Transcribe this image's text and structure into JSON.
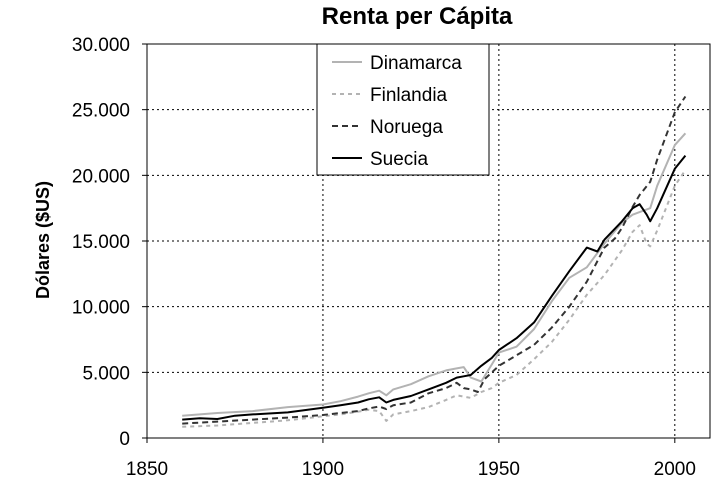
{
  "chart_data": {
    "type": "line",
    "title": "Renta per Cápita",
    "xlabel": "",
    "ylabel": "Dólares ($US)",
    "xlim": [
      1850,
      2010
    ],
    "ylim": [
      0,
      30000
    ],
    "x_ticks": [
      1850,
      1900,
      1950,
      2000
    ],
    "x_tick_labels": [
      "1850",
      "1900",
      "1950",
      "2000"
    ],
    "y_ticks": [
      0,
      5000,
      10000,
      15000,
      20000,
      25000,
      30000
    ],
    "y_tick_labels": [
      "0",
      "5.000",
      "10.000",
      "15.000",
      "20.000",
      "25.000",
      "30.000"
    ],
    "grid": {
      "horizontal": true,
      "vertical": true,
      "style": "dotted"
    },
    "legend_position": "top-center",
    "series": [
      {
        "name": "Dinamarca",
        "color": "#b3b3b3",
        "dash": "solid",
        "x": [
          1860,
          1870,
          1880,
          1890,
          1900,
          1905,
          1910,
          1913,
          1916,
          1918,
          1920,
          1925,
          1930,
          1935,
          1938,
          1940,
          1942,
          1945,
          1948,
          1950,
          1955,
          1960,
          1965,
          1970,
          1975,
          1980,
          1985,
          1988,
          1990,
          1993,
          1995,
          2000,
          2003
        ],
        "y": [
          1700,
          1900,
          2050,
          2350,
          2550,
          2800,
          3150,
          3400,
          3600,
          3250,
          3700,
          4100,
          4700,
          5150,
          5300,
          5400,
          4600,
          4300,
          5600,
          6500,
          6950,
          8300,
          10400,
          12200,
          13000,
          14800,
          16400,
          17000,
          17200,
          17500,
          19200,
          22300,
          23200
        ]
      },
      {
        "name": "Finlandia",
        "color": "#b3b3b3",
        "dash": "4,4",
        "x": [
          1860,
          1870,
          1880,
          1890,
          1900,
          1905,
          1910,
          1913,
          1916,
          1918,
          1920,
          1925,
          1930,
          1935,
          1938,
          1940,
          1942,
          1945,
          1948,
          1950,
          1955,
          1960,
          1965,
          1970,
          1975,
          1980,
          1985,
          1988,
          1990,
          1992,
          1993,
          1995,
          2000,
          2003
        ],
        "y": [
          850,
          950,
          1150,
          1350,
          1650,
          1800,
          2000,
          2150,
          2050,
          1300,
          1800,
          2050,
          2350,
          2900,
          3250,
          3150,
          3050,
          3500,
          3800,
          4200,
          4800,
          6000,
          7300,
          9000,
          10900,
          12400,
          14300,
          15700,
          16200,
          14800,
          14600,
          15800,
          19200,
          20400
        ]
      },
      {
        "name": "Noruega",
        "color": "#333333",
        "dash": "6,4",
        "x": [
          1860,
          1870,
          1880,
          1890,
          1900,
          1905,
          1910,
          1913,
          1916,
          1918,
          1920,
          1925,
          1930,
          1935,
          1938,
          1940,
          1942,
          1944,
          1946,
          1950,
          1955,
          1960,
          1965,
          1970,
          1975,
          1980,
          1983,
          1985,
          1988,
          1990,
          1993,
          1995,
          2000,
          2003
        ],
        "y": [
          1100,
          1250,
          1400,
          1550,
          1750,
          1900,
          2050,
          2250,
          2400,
          2200,
          2500,
          2700,
          3400,
          3800,
          4200,
          3800,
          3700,
          3500,
          4500,
          5500,
          6300,
          7100,
          8400,
          10000,
          11900,
          14500,
          15200,
          16000,
          17600,
          18500,
          19500,
          21200,
          24800,
          26000
        ]
      },
      {
        "name": "Suecia",
        "color": "#000000",
        "dash": "solid",
        "x": [
          1860,
          1865,
          1870,
          1875,
          1880,
          1890,
          1900,
          1905,
          1910,
          1913,
          1916,
          1918,
          1920,
          1925,
          1930,
          1935,
          1938,
          1940,
          1942,
          1945,
          1948,
          1950,
          1955,
          1960,
          1965,
          1970,
          1975,
          1978,
          1980,
          1985,
          1988,
          1990,
          1992,
          1993,
          1995,
          2000,
          2003
        ],
        "y": [
          1400,
          1500,
          1450,
          1700,
          1800,
          1950,
          2300,
          2500,
          2700,
          2950,
          3100,
          2700,
          2900,
          3200,
          3700,
          4200,
          4600,
          4700,
          4800,
          5500,
          6100,
          6700,
          7600,
          8800,
          10800,
          12700,
          14500,
          14200,
          15100,
          16500,
          17500,
          17800,
          17000,
          16500,
          17500,
          20500,
          21500
        ]
      }
    ]
  }
}
